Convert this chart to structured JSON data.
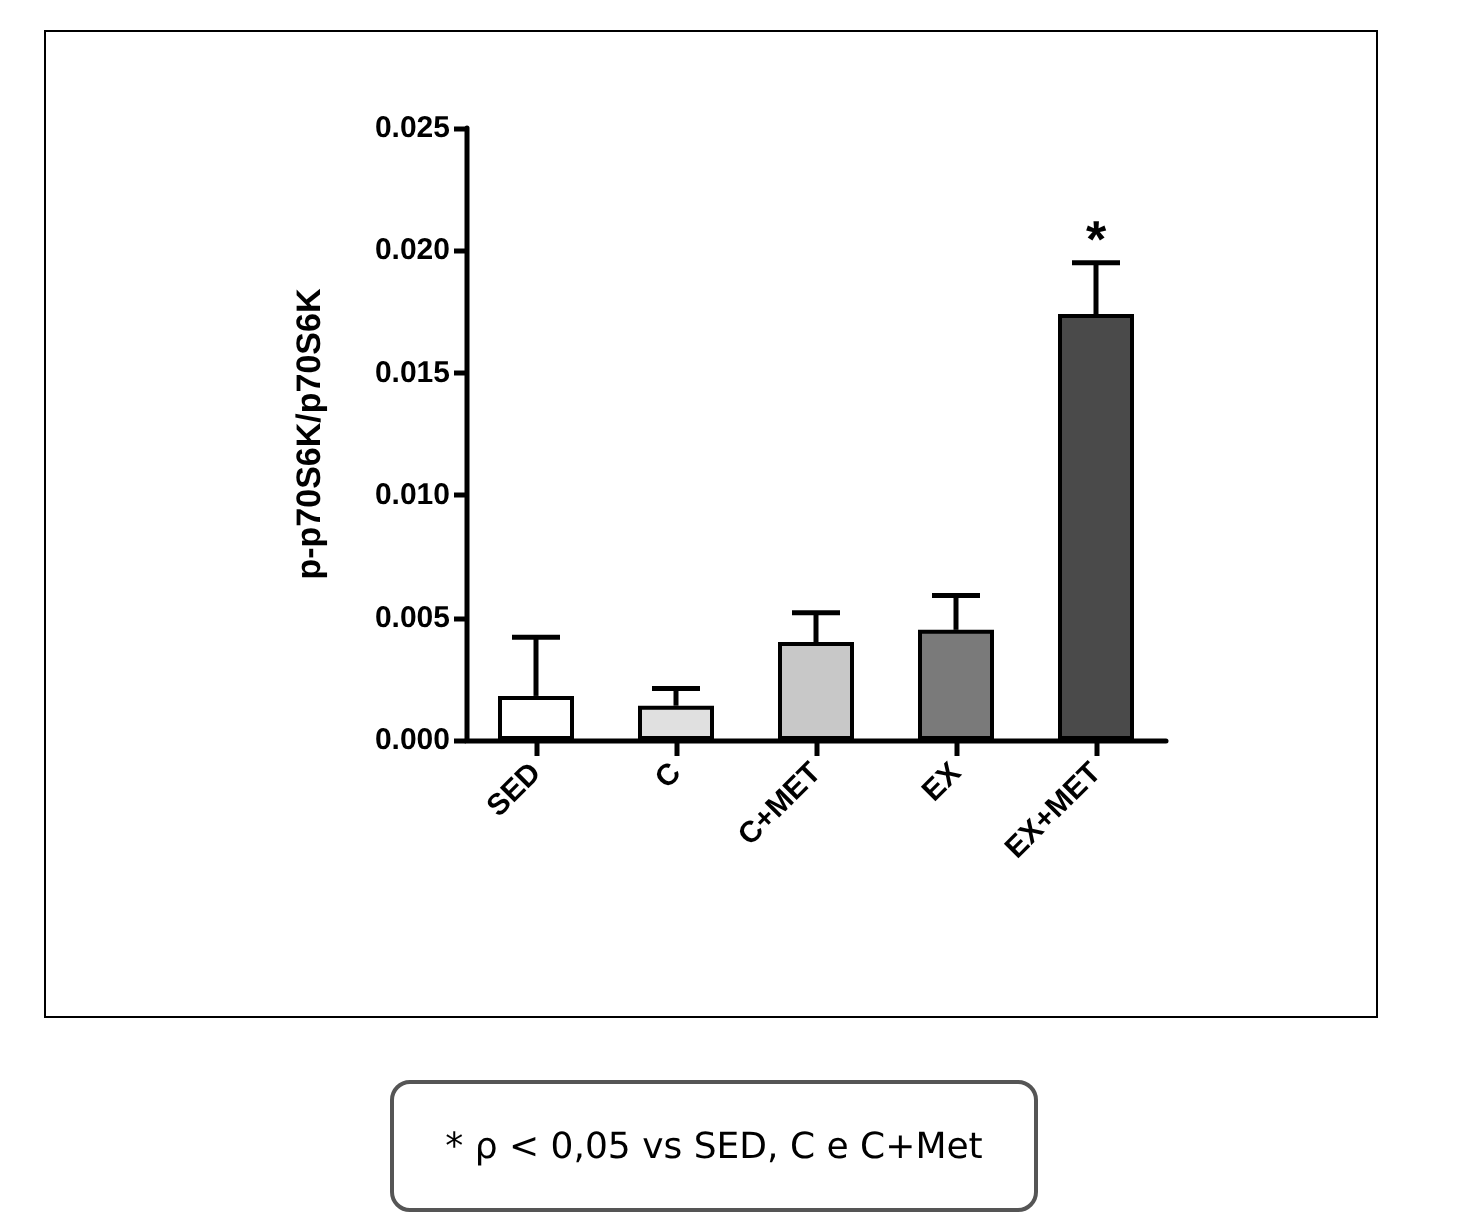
{
  "chart_data": {
    "type": "bar",
    "ylabel": "p-p70S6K/p70S6K",
    "categories": [
      "SED",
      "C",
      "C+MET",
      "EX",
      "EX+MET"
    ],
    "values": [
      0.0018,
      0.0014,
      0.004,
      0.0045,
      0.0174
    ],
    "colors": [
      "#ffffff",
      "#e0e0e0",
      "#c8c8c8",
      "#7a7a7a",
      "#4a4a4a"
    ],
    "errors": [
      [
        0.0018,
        0.0042
      ],
      [
        0.0014,
        0.0021
      ],
      [
        0.004,
        0.0052
      ],
      [
        0.0045,
        0.0059
      ],
      [
        0.0174,
        0.0195
      ]
    ],
    "ylim": [
      0,
      0.025
    ],
    "yticks": [
      {
        "value": 0,
        "label": "0.000"
      },
      {
        "value": 0.005,
        "label": "0.005"
      },
      {
        "value": 0.01,
        "label": "0.010"
      },
      {
        "value": 0.015,
        "label": "0.015"
      },
      {
        "value": 0.02,
        "label": "0.020"
      },
      {
        "value": 0.025,
        "label": "0.025"
      }
    ],
    "annotations": [
      {
        "text": "*",
        "x": "EX+MET",
        "y": 0.0195
      },
      "* ρ < 0,05 vs SED, C e C+Met"
    ]
  }
}
